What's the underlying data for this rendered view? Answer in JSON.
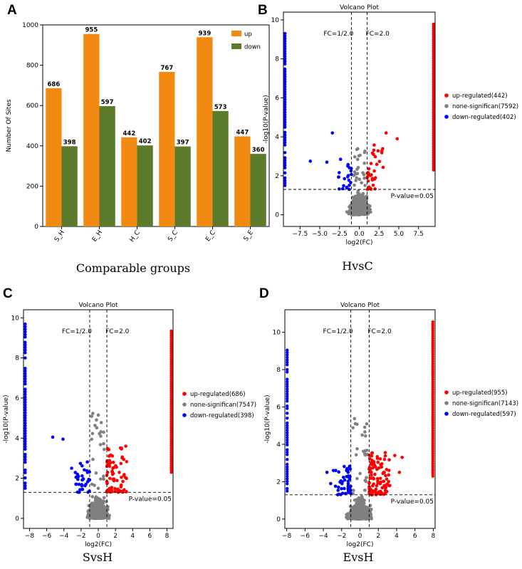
{
  "colors": {
    "up_bar": "#F28A11",
    "down_bar": "#5B7A2A",
    "up_regulated": "#FF0000",
    "none_significant": "#808080",
    "down_regulated": "#0000FF"
  },
  "panels": {
    "A": {
      "letter": "A",
      "caption": "Comparable groups"
    },
    "B": {
      "letter": "B",
      "caption": "HvsC"
    },
    "C": {
      "letter": "C",
      "caption": "SvsH"
    },
    "D": {
      "letter": "D",
      "caption": "EvsH"
    }
  },
  "chart_data": [
    {
      "id": "A",
      "type": "bar",
      "title": "",
      "xlabel": "Comparable groups",
      "ylabel": "Number Of Sites",
      "categories": [
        "S_H",
        "E_H",
        "H_C",
        "S_C",
        "E_C",
        "S_E"
      ],
      "series": [
        {
          "name": "up",
          "values": [
            686,
            955,
            442,
            767,
            939,
            447
          ]
        },
        {
          "name": "down",
          "values": [
            398,
            597,
            402,
            397,
            573,
            360
          ]
        }
      ],
      "ylim": [
        0,
        1000
      ],
      "yticks": [
        "0",
        "200",
        "400",
        "600",
        "800",
        "1000"
      ],
      "legend": [
        "up",
        "down"
      ],
      "legend_position": "top-right"
    },
    {
      "id": "B",
      "type": "scatter",
      "title": "Volcano Plot",
      "xlabel": "log2(FC)",
      "ylabel": "-log10(P-value)",
      "xlim": [
        -9.6,
        9.6
      ],
      "ylim": [
        -0.6,
        10.4
      ],
      "xticks": [
        -7.5,
        -5.0,
        -2.5,
        0.0,
        2.5,
        5.0,
        7.5
      ],
      "xtick_labels": [
        "−7.5",
        "−5.0",
        "−2.5",
        "0.0",
        "2.5",
        "5.0",
        "7.5"
      ],
      "yticks": [
        0,
        2,
        4,
        6,
        8,
        10
      ],
      "ytick_labels": [
        "0",
        "2",
        "4",
        "6",
        "8",
        "10"
      ],
      "edge": 9.4,
      "fc_lines": [
        -1,
        1
      ],
      "fc_labels": [
        "FC=1/2.0",
        "FC=2.0"
      ],
      "pvalue_line": 1.3,
      "pvalue_label": "P-value=0.05",
      "legend": [
        "up-regulated(442)",
        "none-significan(7592)",
        "down-regulated(402)"
      ],
      "legend_position": "outside-right",
      "seed": 11,
      "gray_spread": 3.2,
      "gray_peak": 3.4,
      "red_count": 35,
      "blue_count": 22,
      "up_outliers": [
        [
          4.8,
          3.9
        ],
        [
          3.4,
          4.2
        ]
      ],
      "down_outliers": [
        [
          -3.4,
          4.2
        ],
        [
          -6.2,
          2.75
        ],
        [
          -4.1,
          2.7
        ]
      ],
      "right_edge_max": 9.8,
      "left_edge_max": 9.4
    },
    {
      "id": "C",
      "type": "scatter",
      "title": "Volcano Plot",
      "xlabel": "log2(FC)",
      "ylabel": "-log10(P-value)",
      "xlim": [
        -8.7,
        8.7
      ],
      "ylim": [
        -0.5,
        10.4
      ],
      "xticks": [
        -8,
        -6,
        -4,
        -2,
        0,
        2,
        4,
        6,
        8
      ],
      "xtick_labels": [
        "−8",
        "−6",
        "−4",
        "−2",
        "0",
        "2",
        "4",
        "6",
        "8"
      ],
      "yticks": [
        0,
        2,
        4,
        6,
        8,
        10
      ],
      "ytick_labels": [
        "0",
        "2",
        "4",
        "6",
        "8",
        "10"
      ],
      "edge": 8.5,
      "fc_lines": [
        -1,
        1
      ],
      "fc_labels": [
        "FC=1/2.0",
        "FC=2.0"
      ],
      "pvalue_line": 1.3,
      "pvalue_label": "P-value=0.05",
      "legend": [
        "up-regulated(686)",
        "none-significan(7547)",
        "down-regulated(398)"
      ],
      "legend_position": "outside-right",
      "seed": 23,
      "gray_spread": 3.0,
      "gray_peak": 5.3,
      "red_count": 70,
      "blue_count": 32,
      "up_outliers": [
        [
          3.2,
          3.6
        ],
        [
          2.7,
          3.5
        ]
      ],
      "down_outliers": [
        [
          -5.3,
          4.05
        ],
        [
          -4.1,
          3.95
        ],
        [
          -3.1,
          2.5
        ],
        [
          -2.6,
          1.7
        ]
      ],
      "right_edge_max": 9.4,
      "left_edge_max": 9.8
    },
    {
      "id": "D",
      "type": "scatter",
      "title": "Volcano Plot",
      "xlabel": "log2(FC)",
      "ylabel": "-log10(P-value)",
      "xlim": [
        -8.2,
        8.2
      ],
      "ylim": [
        -0.5,
        11.2
      ],
      "xticks": [
        -8,
        -6,
        -4,
        -2,
        0,
        2,
        4,
        6,
        8
      ],
      "xtick_labels": [
        "−8",
        "−6",
        "−4",
        "−2",
        "0",
        "2",
        "4",
        "6",
        "8"
      ],
      "yticks": [
        0,
        2,
        4,
        6,
        8,
        10
      ],
      "ytick_labels": [
        "0",
        "2",
        "4",
        "6",
        "8",
        "10"
      ],
      "edge": 7.95,
      "fc_lines": [
        -1,
        1
      ],
      "fc_labels": [
        "FC=1/2.0",
        "FC=2.0"
      ],
      "pvalue_line": 1.3,
      "pvalue_label": "P-value=0.05",
      "legend": [
        "up-regulated(955)",
        "none-significan(7143)",
        "down-regulated(597)"
      ],
      "legend_position": "outside-right",
      "seed": 37,
      "gray_spread": 3.1,
      "gray_peak": 5.4,
      "red_count": 110,
      "blue_count": 45,
      "up_outliers": [
        [
          4.6,
          3.3
        ],
        [
          3.8,
          3.4
        ],
        [
          4.3,
          2.5
        ]
      ],
      "down_outliers": [
        [
          -3.6,
          2.5
        ],
        [
          -3.2,
          1.9
        ],
        [
          -2.9,
          2.6
        ]
      ],
      "right_edge_max": 10.6,
      "left_edge_max": 9.2
    }
  ]
}
